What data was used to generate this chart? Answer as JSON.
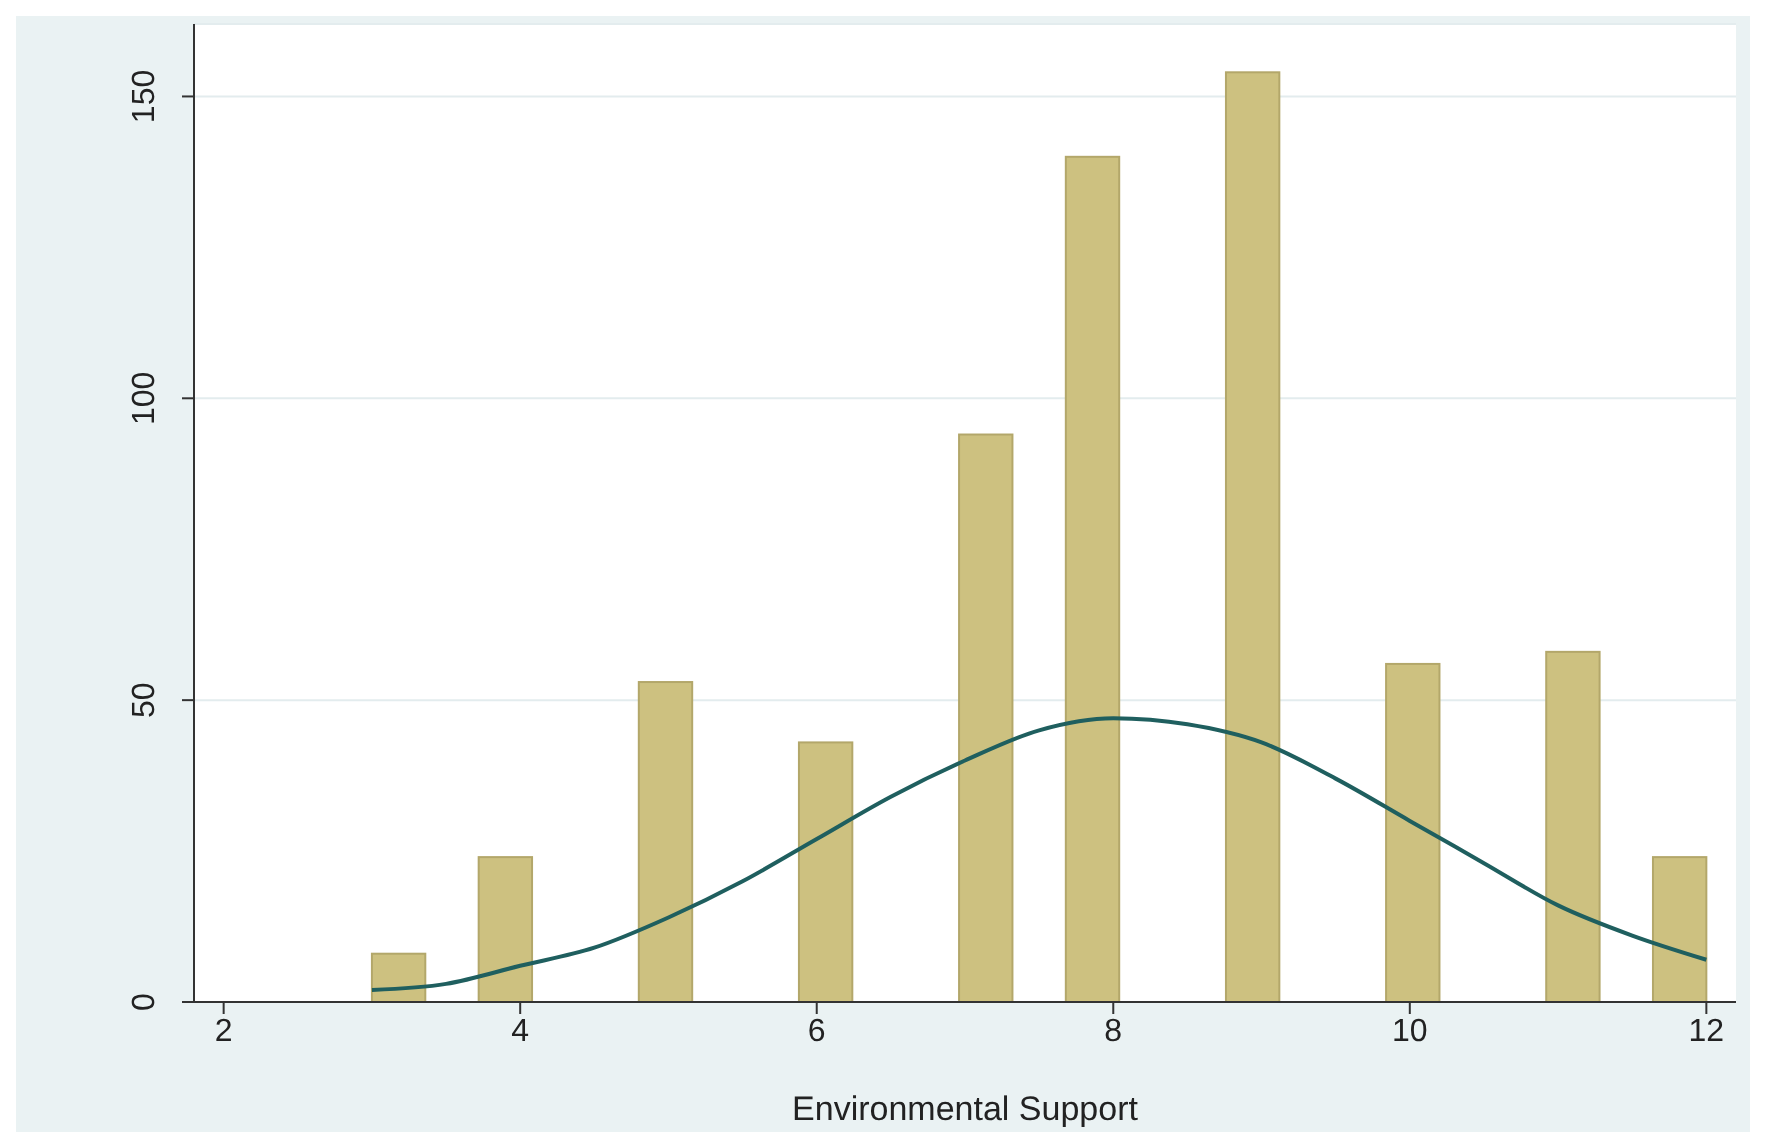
{
  "chart_data": {
    "type": "histogram",
    "xlabel": "Environmental Support",
    "bins": [
      3,
      3.36,
      3.72,
      4.08,
      4.44,
      4.8,
      5.16,
      5.52,
      5.88,
      6.24,
      6.6,
      6.96,
      7.32,
      7.68,
      8.04,
      8.4,
      8.76,
      9.12,
      9.48,
      9.84,
      10.2,
      10.56,
      10.92,
      11.28,
      11.64,
      12
    ],
    "values": [
      8,
      0,
      24,
      0,
      0,
      53,
      0,
      0,
      43,
      0,
      0,
      94,
      0,
      140,
      0,
      0,
      154,
      0,
      0,
      56,
      0,
      0,
      58,
      0,
      24
    ],
    "color": "#cdc180",
    "series": [
      {
        "type": "line",
        "color": "#1f5f5f",
        "x": [
          3,
          3.5,
          4,
          4.5,
          5,
          5.5,
          6,
          6.5,
          7,
          7.5,
          8,
          8.5,
          9,
          9.5,
          10,
          10.5,
          11,
          11.5,
          12
        ],
        "values": [
          2,
          3,
          6,
          9,
          14,
          20,
          27,
          34,
          40,
          45,
          47,
          46,
          43,
          37,
          30,
          23,
          16,
          11,
          7
        ]
      }
    ],
    "xlim": [
      1.8,
      12.2
    ],
    "xticks": [
      2,
      4,
      6,
      8,
      10,
      12
    ],
    "ylim": [
      0,
      162
    ],
    "yticks": [
      0,
      50,
      100,
      150
    ],
    "grid": "y"
  }
}
